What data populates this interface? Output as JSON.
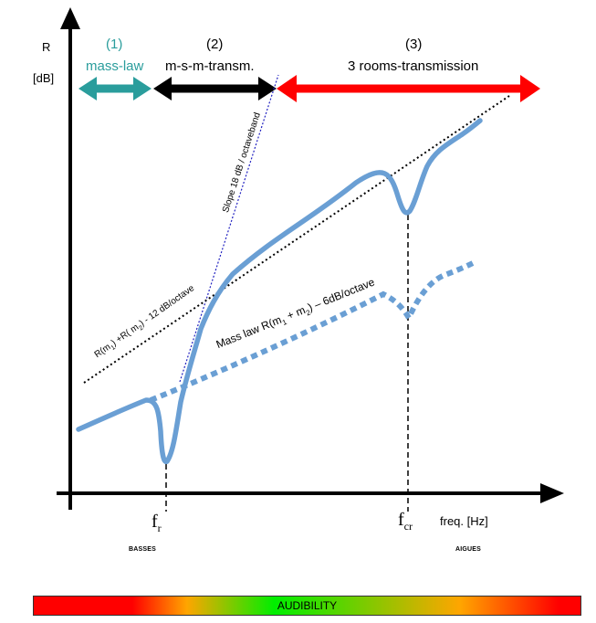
{
  "axis": {
    "y_label": "R",
    "y_unit": "[dB]",
    "x_label": "freq. [Hz]",
    "fr_main": "f",
    "fr_sub": "r",
    "fcr_main": "f",
    "fcr_sub": "cr",
    "low_label": "BASSES",
    "high_label": "AIGUES"
  },
  "regions": [
    {
      "num": "(1)",
      "name": "mass-law",
      "color": "#2a9d9c"
    },
    {
      "num": "(2)",
      "name": "m-s-m-transm.",
      "color": "#000000"
    },
    {
      "num": "(3)",
      "name": "3 rooms-transmission",
      "color": "#ff0000"
    }
  ],
  "annotations": {
    "slope18": "Slope 18 dB / octaveband",
    "rsum_pre": "R(m",
    "rsum_s1": "1",
    "rsum_mid": ") +R( m",
    "rsum_s2": "2",
    "rsum_post": ") - 12 dB/octave",
    "mass_pre": "Mass law R(m",
    "mass_s1": "1",
    "mass_mid": " + m",
    "mass_s2": "2",
    "mass_post": ") – 6dB/octave"
  },
  "audibility": {
    "label": "AUDIBILITY",
    "gradient": [
      "#ff0000",
      "#ffa500",
      "#00ee00",
      "#ffa500",
      "#ff0000"
    ]
  },
  "colors": {
    "curve": "#6a9fd4",
    "slope_line": "#2020c0"
  }
}
